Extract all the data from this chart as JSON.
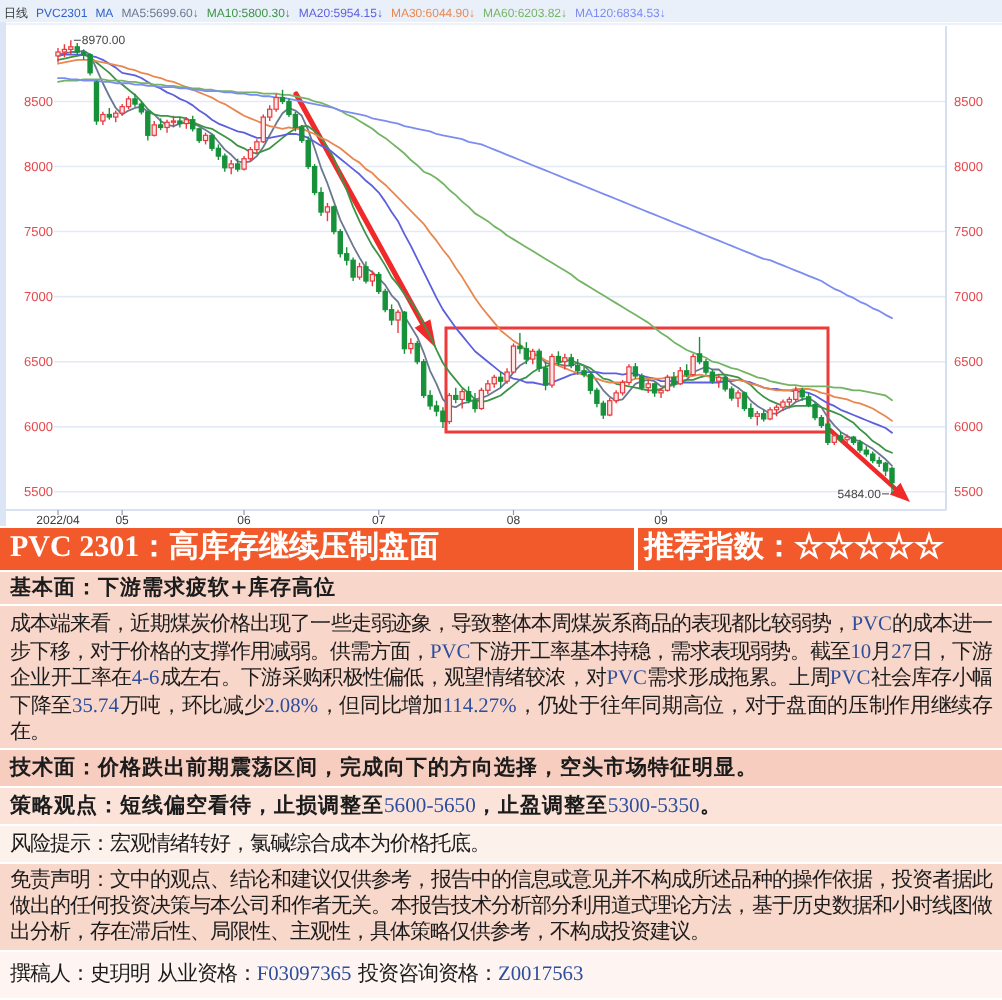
{
  "chart_data": {
    "type": "candlestick",
    "title": "PVC 2301：高库存继续压制盘面",
    "legend_title": "MA",
    "legend": "top left",
    "grid": "y",
    "categories": [
      "2022/04",
      null,
      null,
      null,
      null,
      null,
      null,
      null,
      null,
      null,
      "05",
      null,
      null,
      null,
      null,
      null,
      null,
      null,
      null,
      null,
      null,
      null,
      null,
      null,
      null,
      null,
      null,
      null,
      null,
      "06",
      null,
      null,
      null,
      null,
      null,
      null,
      null,
      null,
      null,
      null,
      null,
      null,
      null,
      null,
      null,
      null,
      null,
      null,
      null,
      null,
      "07",
      null,
      null,
      null,
      null,
      null,
      null,
      null,
      null,
      null,
      null,
      null,
      null,
      null,
      null,
      null,
      null,
      null,
      null,
      null,
      null,
      "08",
      null,
      null,
      null,
      null,
      null,
      null,
      null,
      null,
      null,
      null,
      null,
      null,
      null,
      null,
      null,
      null,
      null,
      null,
      null,
      null,
      null,
      null,
      "09",
      null,
      null,
      null,
      null,
      null,
      null,
      null,
      null,
      null,
      null,
      null,
      null,
      null,
      null,
      null,
      null,
      null,
      null,
      null,
      null,
      null,
      null,
      null,
      null,
      null,
      null,
      null,
      null,
      null,
      null,
      null,
      null,
      null,
      null,
      null,
      null
    ],
    "ohlc": [
      [
        8850,
        8910,
        8800,
        8880
      ],
      [
        8880,
        8940,
        8840,
        8900
      ],
      [
        8900,
        8970,
        8860,
        8920
      ],
      [
        8920,
        8950,
        8860,
        8880
      ],
      [
        8880,
        8900,
        8820,
        8860
      ],
      [
        8860,
        8870,
        8700,
        8720
      ],
      [
        8650,
        8660,
        8320,
        8350
      ],
      [
        8350,
        8420,
        8320,
        8400
      ],
      [
        8400,
        8450,
        8360,
        8380
      ],
      [
        8380,
        8430,
        8340,
        8410
      ],
      [
        8410,
        8480,
        8390,
        8460
      ],
      [
        8460,
        8540,
        8440,
        8520
      ],
      [
        8520,
        8560,
        8460,
        8480
      ],
      [
        8480,
        8500,
        8400,
        8420
      ],
      [
        8420,
        8430,
        8200,
        8240
      ],
      [
        8240,
        8350,
        8230,
        8320
      ],
      [
        8320,
        8370,
        8280,
        8300
      ],
      [
        8300,
        8360,
        8260,
        8340
      ],
      [
        8340,
        8390,
        8300,
        8350
      ],
      [
        8350,
        8380,
        8300,
        8330
      ],
      [
        8330,
        8380,
        8290,
        8360
      ],
      [
        8360,
        8390,
        8270,
        8290
      ],
      [
        8290,
        8300,
        8180,
        8200
      ],
      [
        8200,
        8260,
        8170,
        8240
      ],
      [
        8240,
        8250,
        8120,
        8140
      ],
      [
        8140,
        8170,
        8050,
        8080
      ],
      [
        8080,
        8100,
        7960,
        7990
      ],
      [
        7990,
        8050,
        7940,
        8020
      ],
      [
        8020,
        8060,
        7960,
        7980
      ],
      [
        7980,
        8080,
        7970,
        8060
      ],
      [
        8060,
        8150,
        8040,
        8130
      ],
      [
        8130,
        8210,
        8100,
        8190
      ],
      [
        8190,
        8400,
        8180,
        8380
      ],
      [
        8380,
        8470,
        8350,
        8440
      ],
      [
        8440,
        8560,
        8420,
        8530
      ],
      [
        8530,
        8590,
        8480,
        8500
      ],
      [
        8500,
        8520,
        8380,
        8400
      ],
      [
        8400,
        8420,
        8270,
        8300
      ],
      [
        8300,
        8320,
        8180,
        8200
      ],
      [
        8200,
        8230,
        7980,
        8000
      ],
      [
        8000,
        8020,
        7780,
        7800
      ],
      [
        7800,
        7840,
        7620,
        7650
      ],
      [
        7650,
        7720,
        7580,
        7690
      ],
      [
        7690,
        7700,
        7480,
        7500
      ],
      [
        7500,
        7520,
        7300,
        7330
      ],
      [
        7330,
        7380,
        7240,
        7280
      ],
      [
        7280,
        7300,
        7120,
        7150
      ],
      [
        7150,
        7260,
        7130,
        7230
      ],
      [
        7230,
        7270,
        7100,
        7120
      ],
      [
        7120,
        7200,
        7080,
        7170
      ],
      [
        7170,
        7190,
        7020,
        7040
      ],
      [
        7040,
        7060,
        6880,
        6900
      ],
      [
        6900,
        6940,
        6780,
        6820
      ],
      [
        6820,
        6900,
        6720,
        6880
      ],
      [
        6880,
        6890,
        6560,
        6600
      ],
      [
        6600,
        6680,
        6560,
        6640
      ],
      [
        6640,
        6660,
        6480,
        6500
      ],
      [
        6500,
        6520,
        6220,
        6240
      ],
      [
        6240,
        6280,
        6130,
        6160
      ],
      [
        6160,
        6200,
        6080,
        6120
      ],
      [
        6120,
        6150,
        5990,
        6040
      ],
      [
        6040,
        6260,
        6020,
        6240
      ],
      [
        6240,
        6300,
        6180,
        6210
      ],
      [
        6210,
        6290,
        6140,
        6270
      ],
      [
        6270,
        6310,
        6180,
        6200
      ],
      [
        6200,
        6260,
        6110,
        6140
      ],
      [
        6140,
        6300,
        6130,
        6280
      ],
      [
        6280,
        6360,
        6250,
        6330
      ],
      [
        6330,
        6400,
        6300,
        6380
      ],
      [
        6380,
        6420,
        6300,
        6350
      ],
      [
        6350,
        6450,
        6330,
        6420
      ],
      [
        6420,
        6640,
        6410,
        6620
      ],
      [
        6620,
        6720,
        6560,
        6600
      ],
      [
        6600,
        6650,
        6480,
        6520
      ],
      [
        6520,
        6600,
        6480,
        6580
      ],
      [
        6580,
        6600,
        6420,
        6450
      ],
      [
        6450,
        6500,
        6280,
        6320
      ],
      [
        6320,
        6560,
        6300,
        6540
      ],
      [
        6540,
        6580,
        6470,
        6500
      ],
      [
        6500,
        6560,
        6440,
        6530
      ],
      [
        6530,
        6560,
        6450,
        6470
      ],
      [
        6470,
        6520,
        6400,
        6430
      ],
      [
        6430,
        6460,
        6380,
        6400
      ],
      [
        6400,
        6420,
        6250,
        6280
      ],
      [
        6280,
        6300,
        6150,
        6180
      ],
      [
        6180,
        6200,
        6060,
        6090
      ],
      [
        6090,
        6220,
        6080,
        6200
      ],
      [
        6200,
        6280,
        6180,
        6260
      ],
      [
        6260,
        6360,
        6240,
        6340
      ],
      [
        6340,
        6480,
        6320,
        6460
      ],
      [
        6460,
        6490,
        6370,
        6390
      ],
      [
        6390,
        6410,
        6280,
        6300
      ],
      [
        6300,
        6360,
        6260,
        6330
      ],
      [
        6330,
        6340,
        6230,
        6260
      ],
      [
        6260,
        6300,
        6220,
        6280
      ],
      [
        6280,
        6400,
        6270,
        6380
      ],
      [
        6380,
        6420,
        6300,
        6330
      ],
      [
        6330,
        6460,
        6320,
        6430
      ],
      [
        6430,
        6480,
        6380,
        6400
      ],
      [
        6400,
        6560,
        6390,
        6540
      ],
      [
        6560,
        6690,
        6480,
        6500
      ],
      [
        6500,
        6520,
        6400,
        6420
      ],
      [
        6420,
        6440,
        6330,
        6350
      ],
      [
        6350,
        6400,
        6300,
        6380
      ],
      [
        6380,
        6390,
        6270,
        6290
      ],
      [
        6290,
        6310,
        6200,
        6220
      ],
      [
        6220,
        6280,
        6150,
        6260
      ],
      [
        6260,
        6270,
        6120,
        6140
      ],
      [
        6140,
        6180,
        6060,
        6080
      ],
      [
        6080,
        6120,
        6010,
        6100
      ],
      [
        6100,
        6130,
        6040,
        6060
      ],
      [
        6060,
        6150,
        6050,
        6130
      ],
      [
        6130,
        6170,
        6080,
        6150
      ],
      [
        6150,
        6210,
        6120,
        6190
      ],
      [
        6190,
        6230,
        6140,
        6210
      ],
      [
        6210,
        6310,
        6190,
        6280
      ],
      [
        6280,
        6300,
        6200,
        6230
      ],
      [
        6230,
        6260,
        6150,
        6170
      ],
      [
        6170,
        6190,
        6050,
        6070
      ],
      [
        6070,
        6090,
        5990,
        6010
      ],
      [
        6020,
        6040,
        5860,
        5880
      ],
      [
        5880,
        5950,
        5860,
        5930
      ],
      [
        5930,
        5960,
        5880,
        5900
      ],
      [
        5900,
        5940,
        5870,
        5920
      ],
      [
        5920,
        5930,
        5860,
        5880
      ],
      [
        5880,
        5900,
        5800,
        5820
      ],
      [
        5820,
        5850,
        5770,
        5790
      ],
      [
        5790,
        5810,
        5720,
        5740
      ],
      [
        5740,
        5770,
        5690,
        5720
      ],
      [
        5720,
        5730,
        5620,
        5660
      ],
      [
        5680,
        5690,
        5484,
        5570
      ]
    ],
    "series": [
      {
        "name": "MA5:5699.60↓",
        "type": "line",
        "color": "#6b7891",
        "values": [
          8860,
          8870,
          8880,
          8880,
          8890,
          8860,
          8750,
          8640,
          8540,
          8450,
          8400,
          8430,
          8450,
          8460,
          8420,
          8400,
          8350,
          8320,
          8310,
          8330,
          8340,
          8330,
          8310,
          8280,
          8250,
          8190,
          8130,
          8090,
          8040,
          8030,
          8040,
          8080,
          8150,
          8240,
          8330,
          8410,
          8450,
          8430,
          8390,
          8280,
          8140,
          7990,
          7870,
          7730,
          7590,
          7490,
          7390,
          7300,
          7220,
          7190,
          7140,
          7090,
          7010,
          6960,
          6850,
          6770,
          6690,
          6570,
          6430,
          6330,
          6210,
          6160,
          6150,
          6180,
          6190,
          6210,
          6220,
          6240,
          6270,
          6300,
          6350,
          6420,
          6470,
          6500,
          6550,
          6550,
          6490,
          6480,
          6480,
          6470,
          6470,
          6490,
          6470,
          6420,
          6350,
          6280,
          6230,
          6200,
          6210,
          6270,
          6330,
          6350,
          6360,
          6350,
          6310,
          6310,
          6320,
          6340,
          6360,
          6420,
          6440,
          6460,
          6440,
          6440,
          6390,
          6330,
          6300,
          6260,
          6200,
          6160,
          6130,
          6100,
          6100,
          6130,
          6150,
          6190,
          6210,
          6220,
          6190,
          6150,
          6070,
          6010,
          5960,
          5930,
          5900,
          5890,
          5860,
          5830,
          5790,
          5750,
          5699.6
        ]
      },
      {
        "name": "MA10:5800.30↓",
        "type": "line",
        "color": "#3d9446",
        "values": [
          8820,
          8830,
          8840,
          8850,
          8860,
          8840,
          8800,
          8760,
          8720,
          8670,
          8630,
          8590,
          8550,
          8500,
          8440,
          8400,
          8390,
          8390,
          8380,
          8380,
          8370,
          8340,
          8320,
          8300,
          8290,
          8260,
          8230,
          8200,
          8160,
          8140,
          8110,
          8100,
          8120,
          8140,
          8180,
          8220,
          8260,
          8290,
          8310,
          8310,
          8270,
          8220,
          8150,
          8060,
          7940,
          7820,
          7690,
          7580,
          7480,
          7390,
          7320,
          7240,
          7150,
          7090,
          7020,
          6960,
          6890,
          6790,
          6700,
          6590,
          6490,
          6420,
          6360,
          6300,
          6260,
          6210,
          6190,
          6200,
          6220,
          6240,
          6280,
          6320,
          6360,
          6380,
          6420,
          6450,
          6460,
          6480,
          6490,
          6510,
          6510,
          6490,
          6470,
          6450,
          6410,
          6370,
          6360,
          6330,
          6320,
          6310,
          6300,
          6290,
          6280,
          6280,
          6290,
          6320,
          6330,
          6350,
          6360,
          6360,
          6380,
          6390,
          6390,
          6400,
          6400,
          6390,
          6380,
          6350,
          6320,
          6270,
          6230,
          6200,
          6180,
          6160,
          6150,
          6160,
          6160,
          6160,
          6160,
          6150,
          6130,
          6110,
          6090,
          6060,
          6030,
          5980,
          5940,
          5890,
          5860,
          5820,
          5800.3
        ]
      },
      {
        "name": "MA20:5954.15↓",
        "type": "line",
        "color": "#5d5fdc",
        "values": [
          8850,
          8860,
          8860,
          8860,
          8860,
          8850,
          8840,
          8820,
          8790,
          8760,
          8720,
          8710,
          8700,
          8680,
          8650,
          8620,
          8600,
          8570,
          8550,
          8520,
          8500,
          8470,
          8430,
          8400,
          8360,
          8330,
          8310,
          8290,
          8270,
          8260,
          8240,
          8220,
          8220,
          8220,
          8230,
          8240,
          8250,
          8250,
          8240,
          8220,
          8190,
          8160,
          8140,
          8100,
          8060,
          8020,
          7980,
          7940,
          7890,
          7850,
          7800,
          7730,
          7650,
          7580,
          7480,
          7390,
          7290,
          7190,
          7090,
          6990,
          6900,
          6830,
          6760,
          6700,
          6640,
          6580,
          6540,
          6500,
          6460,
          6420,
          6390,
          6370,
          6360,
          6340,
          6340,
          6330,
          6320,
          6340,
          6360,
          6380,
          6400,
          6410,
          6420,
          6420,
          6420,
          6410,
          6410,
          6410,
          6400,
          6410,
          6410,
          6390,
          6380,
          6370,
          6350,
          6350,
          6350,
          6340,
          6340,
          6340,
          6340,
          6340,
          6340,
          6340,
          6350,
          6350,
          6360,
          6350,
          6340,
          6320,
          6300,
          6290,
          6290,
          6280,
          6280,
          6270,
          6270,
          6260,
          6240,
          6210,
          6180,
          6160,
          6130,
          6110,
          6090,
          6070,
          6050,
          6030,
          6010,
          5990,
          5954.15
        ]
      },
      {
        "name": "MA30:6044.90↓",
        "type": "line",
        "color": "#e8884f",
        "values": [
          8790,
          8800,
          8810,
          8820,
          8820,
          8820,
          8810,
          8800,
          8790,
          8780,
          8770,
          8750,
          8740,
          8720,
          8710,
          8690,
          8680,
          8660,
          8650,
          8630,
          8610,
          8590,
          8570,
          8550,
          8530,
          8500,
          8480,
          8450,
          8420,
          8390,
          8370,
          8350,
          8330,
          8310,
          8300,
          8290,
          8300,
          8290,
          8290,
          8270,
          8250,
          8220,
          8200,
          8170,
          8140,
          8100,
          8060,
          8030,
          7980,
          7950,
          7900,
          7860,
          7810,
          7760,
          7710,
          7660,
          7610,
          7560,
          7490,
          7430,
          7360,
          7300,
          7220,
          7150,
          7070,
          6990,
          6920,
          6860,
          6800,
          6740,
          6700,
          6660,
          6630,
          6590,
          6570,
          6540,
          6510,
          6490,
          6470,
          6450,
          6430,
          6410,
          6400,
          6380,
          6370,
          6350,
          6340,
          6340,
          6340,
          6350,
          6370,
          6370,
          6370,
          6370,
          6370,
          6380,
          6380,
          6390,
          6390,
          6390,
          6400,
          6390,
          6380,
          6380,
          6370,
          6360,
          6360,
          6350,
          6330,
          6320,
          6300,
          6290,
          6280,
          6280,
          6280,
          6290,
          6290,
          6290,
          6280,
          6260,
          6250,
          6230,
          6220,
          6210,
          6190,
          6180,
          6160,
          6140,
          6110,
          6080,
          6044.9
        ]
      },
      {
        "name": "MA60:6203.82↓",
        "type": "line",
        "color": "#74b565",
        "values": [
          8650,
          8660,
          8660,
          8660,
          8670,
          8670,
          8670,
          8670,
          8660,
          8660,
          8660,
          8650,
          8650,
          8640,
          8640,
          8630,
          8630,
          8620,
          8620,
          8610,
          8610,
          8600,
          8600,
          8590,
          8590,
          8580,
          8580,
          8580,
          8570,
          8570,
          8570,
          8570,
          8560,
          8560,
          8560,
          8550,
          8550,
          8540,
          8530,
          8520,
          8500,
          8490,
          8470,
          8450,
          8430,
          8400,
          8380,
          8350,
          8320,
          8290,
          8250,
          8220,
          8180,
          8140,
          8100,
          8050,
          8010,
          7960,
          7940,
          7910,
          7870,
          7820,
          7780,
          7730,
          7690,
          7640,
          7610,
          7580,
          7540,
          7510,
          7470,
          7440,
          7410,
          7380,
          7350,
          7320,
          7290,
          7260,
          7230,
          7200,
          7170,
          7130,
          7100,
          7070,
          7040,
          7010,
          6980,
          6950,
          6920,
          6890,
          6860,
          6830,
          6800,
          6760,
          6720,
          6690,
          6650,
          6620,
          6590,
          6570,
          6550,
          6530,
          6500,
          6490,
          6470,
          6450,
          6440,
          6420,
          6400,
          6380,
          6370,
          6350,
          6340,
          6330,
          6320,
          6320,
          6310,
          6310,
          6310,
          6310,
          6310,
          6300,
          6300,
          6290,
          6280,
          6280,
          6270,
          6260,
          6250,
          6240,
          6203.82
        ]
      },
      {
        "name": "MA120:6834.53↓",
        "type": "line",
        "color": "#7d8cf0",
        "values": [
          8680,
          8680,
          8670,
          8670,
          8660,
          8660,
          8660,
          8650,
          8650,
          8640,
          8640,
          8640,
          8630,
          8630,
          8620,
          8620,
          8610,
          8610,
          8610,
          8600,
          8600,
          8590,
          8590,
          8580,
          8580,
          8580,
          8570,
          8570,
          8560,
          8560,
          8550,
          8550,
          8540,
          8540,
          8530,
          8530,
          8520,
          8510,
          8500,
          8490,
          8480,
          8470,
          8460,
          8450,
          8430,
          8420,
          8410,
          8400,
          8390,
          8370,
          8360,
          8350,
          8340,
          8330,
          8310,
          8300,
          8290,
          8280,
          8270,
          8250,
          8240,
          8230,
          8220,
          8210,
          8190,
          8180,
          8170,
          8150,
          8130,
          8110,
          8090,
          8070,
          8050,
          8030,
          8010,
          7990,
          7970,
          7950,
          7930,
          7910,
          7890,
          7870,
          7850,
          7830,
          7810,
          7790,
          7770,
          7750,
          7730,
          7710,
          7690,
          7670,
          7650,
          7630,
          7610,
          7590,
          7570,
          7550,
          7530,
          7510,
          7490,
          7470,
          7450,
          7430,
          7410,
          7390,
          7370,
          7350,
          7330,
          7310,
          7290,
          7280,
          7260,
          7240,
          7220,
          7200,
          7180,
          7160,
          7140,
          7120,
          7090,
          7060,
          7040,
          7010,
          6990,
          6960,
          6940,
          6910,
          6890,
          6860,
          6834.53
        ]
      }
    ],
    "ylim": [
      5360,
      9080
    ],
    "yticks": [
      5500,
      6000,
      6500,
      7000,
      7500,
      8000,
      8500
    ],
    "y2lim": [
      5360,
      9080
    ],
    "y2ticks": [
      5500,
      6000,
      6500,
      7000,
      7500,
      8000,
      8500
    ],
    "annotations": [
      "日线",
      "PVC2301",
      "8970.00",
      "5484.00",
      "推荐指数：☆☆☆☆☆",
      "基本面：下游需求疲软+库存高位",
      "成本端来看，近期煤炭价格出现了一些走弱迹象，导致整体本周煤炭系商品的表现都比较弱势，PVC的成本进一步下移，对于价格的支撑作用减弱。供需方面，PVC下游开工率基本持稳，需求表现弱势。截至10月27日，下游企业开工率在4-6成左右。下游采购积极性偏低，观望情绪较浓，对PVC需求形成拖累。上周PVC社会库存小幅下降至35.74万吨，环比减少2.08%，但同比增加114.27%，仍处于往年同期高位，对于盘面的压制作用继续存在。",
      "技术面：价格跌出前期震荡区间，完成向下的方向选择，空头市场特征明显。",
      "策略观点：短线偏空看待，止损调整至5600-5650，止盈调整至5300-5350。",
      "风险提示：宏观情绪转好，氯碱综合成本为价格托底。",
      "免责声明：文中的观点、结论和建议仅供参考，报告中的信息或意见并不构成所述品种的操作依据，投资者据此做出的任何投资决策与本公司和作者无关。本报告技术分析部分利用道式理论方法，基于历史数据和小时线图做出分析，存在滞后性、局限性、主观性，具体策略仅供参考，不构成投资建议。",
      "撰稿人：史玥明 从业资格：F03097365 投资咨询资格：Z0017563"
    ]
  }
}
